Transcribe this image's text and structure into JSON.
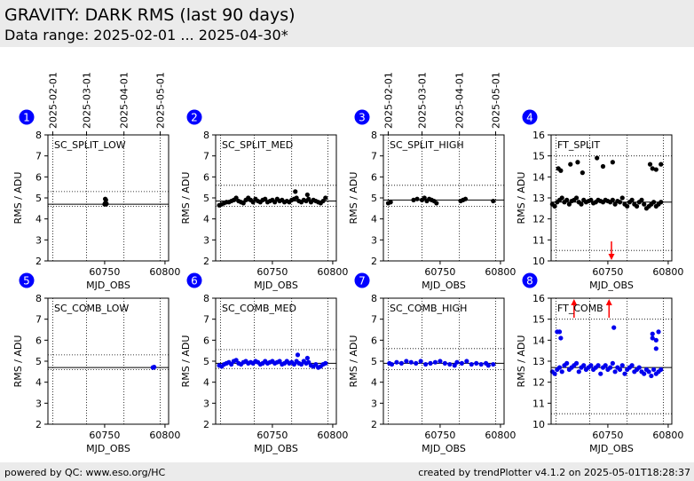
{
  "header": {
    "title": "GRAVITY: DARK RMS (last 90 days)",
    "subtitle": "Data range: 2025-02-01 ... 2025-04-30*"
  },
  "footer": {
    "left": "powered by QC: www.eso.org/HC",
    "right": "created by trendPlotter v4.1.2 on 2025-05-01T18:28:37"
  },
  "date_ticks": [
    "2025-02-01",
    "2025-03-01",
    "2025-04-01",
    "2025-05-01"
  ],
  "colors": {
    "sc_points": "#000000",
    "comb_points": "#0000ee",
    "badge": "#0000ff",
    "outlier_arrow": "#ff0000"
  },
  "chart_data": [
    {
      "type": "scatter",
      "badge": "1",
      "label": "SC_SPLIT_LOW",
      "xlabel": "MJD_OBS",
      "ylabel": "RMS / ADU",
      "xlim": [
        60703,
        60803
      ],
      "ylim": [
        2,
        8
      ],
      "xticks": [
        60750,
        60800
      ],
      "yticks": [
        2,
        3,
        4,
        5,
        6,
        7,
        8
      ],
      "median": 4.7,
      "limits": [
        4.6,
        5.3
      ],
      "x": [
        60750,
        60750.5,
        60751,
        60751.5,
        60750.5,
        60751
      ],
      "y": [
        4.7,
        4.75,
        4.7,
        4.72,
        4.95,
        4.9
      ],
      "outliers_low": [],
      "outliers_high": []
    },
    {
      "type": "scatter",
      "badge": "2",
      "label": "SC_SPLIT_MED",
      "xlabel": "MJD_OBS",
      "ylabel": "RMS / ADU",
      "xlim": [
        60703,
        60803
      ],
      "ylim": [
        2,
        8
      ],
      "xticks": [
        60750,
        60800
      ],
      "yticks": [
        2,
        3,
        4,
        5,
        6,
        7,
        8
      ],
      "median": 4.85,
      "limits": [
        4.6,
        5.6
      ],
      "x": [
        60706,
        60708,
        60710,
        60712,
        60714,
        60716,
        60718,
        60720,
        60722,
        60724,
        60726,
        60728,
        60730,
        60732,
        60734,
        60736,
        60738,
        60740,
        60742,
        60744,
        60746,
        60748,
        60750,
        60752,
        60754,
        60756,
        60758,
        60760,
        60762,
        60764,
        60766,
        60768,
        60770,
        60772,
        60774,
        60776,
        60778,
        60780,
        60782,
        60784,
        60786,
        60788,
        60790,
        60792,
        60794,
        60769,
        60779
      ],
      "y": [
        4.65,
        4.7,
        4.75,
        4.8,
        4.8,
        4.85,
        4.9,
        5.0,
        4.85,
        4.8,
        4.75,
        4.9,
        5.0,
        4.9,
        4.8,
        4.95,
        4.85,
        4.8,
        4.9,
        4.95,
        4.8,
        4.85,
        4.9,
        4.8,
        4.95,
        4.85,
        4.9,
        4.8,
        4.85,
        4.8,
        4.9,
        4.95,
        5.0,
        4.85,
        4.8,
        4.9,
        4.85,
        4.95,
        4.8,
        4.9,
        4.85,
        4.8,
        4.75,
        4.85,
        5.0,
        5.3,
        5.15
      ],
      "outliers_low": [],
      "outliers_high": []
    },
    {
      "type": "scatter",
      "badge": "3",
      "label": "SC_SPLIT_HIGH",
      "xlabel": "MJD_OBS",
      "ylabel": "RMS / ADU",
      "xlim": [
        60703,
        60803
      ],
      "ylim": [
        2,
        8
      ],
      "xticks": [
        60750,
        60800
      ],
      "yticks": [
        2,
        3,
        4,
        5,
        6,
        7,
        8
      ],
      "median": 4.9,
      "limits": [
        4.6,
        5.6
      ],
      "x": [
        60707,
        60709,
        60728,
        60731,
        60735,
        60737,
        60739,
        60741,
        60743,
        60745,
        60747,
        60767,
        60769,
        60771,
        60794
      ],
      "y": [
        4.75,
        4.8,
        4.9,
        4.95,
        4.9,
        5.0,
        4.85,
        4.95,
        4.9,
        4.85,
        4.75,
        4.85,
        4.9,
        4.95,
        4.85
      ],
      "outliers_low": [],
      "outliers_high": []
    },
    {
      "type": "scatter",
      "badge": "4",
      "label": "FT_SPLIT",
      "xlabel": "MJD_OBS",
      "ylabel": "RMS / ADU",
      "xlim": [
        60703,
        60803
      ],
      "ylim": [
        10,
        16
      ],
      "xticks": [
        60750,
        60800
      ],
      "yticks": [
        10,
        11,
        12,
        13,
        14,
        15,
        16
      ],
      "median": 12.8,
      "limits": [
        10.5,
        15.0
      ],
      "x": [
        60704,
        60706,
        60708,
        60710,
        60712,
        60714,
        60716,
        60718,
        60720,
        60722,
        60724,
        60726,
        60728,
        60730,
        60732,
        60734,
        60736,
        60738,
        60740,
        60742,
        60744,
        60746,
        60748,
        60750,
        60752,
        60754,
        60756,
        60758,
        60760,
        60762,
        60764,
        60766,
        60768,
        60770,
        60772,
        60774,
        60776,
        60778,
        60780,
        60782,
        60784,
        60786,
        60788,
        60790,
        60792,
        60794,
        60709,
        60711,
        60719,
        60725,
        60729,
        60741,
        60746,
        60754,
        60785,
        60787,
        60790,
        60794
      ],
      "y": [
        12.7,
        12.6,
        12.8,
        12.9,
        13.0,
        12.8,
        12.9,
        12.7,
        12.85,
        12.9,
        13.0,
        12.8,
        12.7,
        12.9,
        12.8,
        12.85,
        12.9,
        12.75,
        12.8,
        12.9,
        12.85,
        12.8,
        12.9,
        12.85,
        12.8,
        12.9,
        12.7,
        12.85,
        12.8,
        13.0,
        12.7,
        12.6,
        12.8,
        12.9,
        12.7,
        12.6,
        12.8,
        12.9,
        12.7,
        12.5,
        12.6,
        12.7,
        12.8,
        12.6,
        12.7,
        12.8,
        14.4,
        14.3,
        14.6,
        14.7,
        14.2,
        14.9,
        14.5,
        14.7,
        14.6,
        14.4,
        14.35,
        14.6
      ],
      "outliers_low": [
        60753
      ],
      "outliers_high": []
    },
    {
      "type": "scatter",
      "badge": "5",
      "label": "SC_COMB_LOW",
      "xlabel": "MJD_OBS",
      "ylabel": "RMS / ADU",
      "xlim": [
        60703,
        60803
      ],
      "ylim": [
        2,
        8
      ],
      "xticks": [
        60750,
        60800
      ],
      "yticks": [
        2,
        3,
        4,
        5,
        6,
        7,
        8
      ],
      "median": 4.7,
      "limits": [
        4.6,
        5.3
      ],
      "x": [
        60790,
        60791
      ],
      "y": [
        4.7,
        4.72
      ],
      "outliers_low": [],
      "outliers_high": []
    },
    {
      "type": "scatter",
      "badge": "6",
      "label": "SC_COMB_MED",
      "xlabel": "MJD_OBS",
      "ylabel": "RMS / ADU",
      "xlim": [
        60703,
        60803
      ],
      "ylim": [
        2,
        8
      ],
      "xticks": [
        60750,
        60800
      ],
      "yticks": [
        2,
        3,
        4,
        5,
        6,
        7,
        8
      ],
      "median": 4.9,
      "limits": [
        4.65,
        5.55
      ],
      "x": [
        60706,
        60708,
        60710,
        60712,
        60714,
        60716,
        60718,
        60720,
        60722,
        60724,
        60726,
        60728,
        60730,
        60732,
        60734,
        60736,
        60738,
        60740,
        60742,
        60744,
        60746,
        60748,
        60750,
        60752,
        60754,
        60756,
        60758,
        60760,
        60762,
        60764,
        60766,
        60768,
        60770,
        60772,
        60774,
        60776,
        60778,
        60780,
        60782,
        60784,
        60786,
        60788,
        60790,
        60792,
        60794,
        60771,
        60779
      ],
      "y": [
        4.8,
        4.75,
        4.85,
        4.9,
        4.95,
        4.85,
        5.0,
        5.05,
        4.9,
        4.85,
        4.95,
        5.0,
        4.9,
        4.95,
        4.9,
        5.0,
        4.95,
        4.85,
        4.9,
        5.0,
        4.9,
        4.95,
        5.0,
        4.9,
        4.95,
        5.0,
        4.85,
        4.9,
        5.0,
        4.9,
        4.95,
        4.85,
        5.0,
        4.9,
        4.85,
        5.0,
        4.9,
        4.95,
        4.8,
        4.75,
        4.85,
        4.7,
        4.75,
        4.85,
        4.9,
        5.3,
        5.15
      ],
      "outliers_low": [],
      "outliers_high": []
    },
    {
      "type": "scatter",
      "badge": "7",
      "label": "SC_COMB_HIGH",
      "xlabel": "MJD_OBS",
      "ylabel": "RMS / ADU",
      "xlim": [
        60703,
        60803
      ],
      "ylim": [
        2,
        8
      ],
      "xticks": [
        60750,
        60800
      ],
      "yticks": [
        2,
        3,
        4,
        5,
        6,
        7,
        8
      ],
      "median": 4.9,
      "limits": [
        4.6,
        5.6
      ],
      "x": [
        60708,
        60710,
        60714,
        60718,
        60722,
        60726,
        60730,
        60734,
        60738,
        60742,
        60746,
        60750,
        60754,
        60758,
        60762,
        60764,
        60768,
        60772,
        60776,
        60780,
        60784,
        60788,
        60790,
        60794
      ],
      "y": [
        4.9,
        4.85,
        4.95,
        4.9,
        5.0,
        4.95,
        4.9,
        5.0,
        4.85,
        4.9,
        4.95,
        5.0,
        4.9,
        4.85,
        4.8,
        4.95,
        4.9,
        5.0,
        4.85,
        4.9,
        4.85,
        4.9,
        4.8,
        4.85
      ],
      "outliers_low": [],
      "outliers_high": []
    },
    {
      "type": "scatter",
      "badge": "8",
      "label": "FT_COMB",
      "xlabel": "MJD_OBS",
      "ylabel": "RMS / ADU",
      "xlim": [
        60703,
        60803
      ],
      "ylim": [
        10,
        16
      ],
      "xticks": [
        60750,
        60800
      ],
      "yticks": [
        10,
        11,
        12,
        13,
        14,
        15,
        16
      ],
      "median": 12.7,
      "limits": [
        10.5,
        15.0
      ],
      "x": [
        60704,
        60706,
        60708,
        60710,
        60712,
        60714,
        60716,
        60718,
        60720,
        60722,
        60724,
        60726,
        60728,
        60730,
        60732,
        60734,
        60736,
        60738,
        60740,
        60742,
        60744,
        60746,
        60748,
        60750,
        60752,
        60754,
        60756,
        60758,
        60760,
        60762,
        60764,
        60766,
        60768,
        60770,
        60772,
        60774,
        60776,
        60778,
        60780,
        60782,
        60784,
        60786,
        60788,
        60790,
        60792,
        60794,
        60708,
        60710,
        60711,
        60755,
        60787,
        60787,
        60790,
        60790,
        60792
      ],
      "y": [
        12.5,
        12.4,
        12.6,
        12.7,
        12.5,
        12.8,
        12.9,
        12.6,
        12.7,
        12.8,
        12.9,
        12.5,
        12.7,
        12.8,
        12.6,
        12.7,
        12.8,
        12.6,
        12.7,
        12.8,
        12.4,
        12.7,
        12.8,
        12.6,
        12.7,
        12.9,
        12.5,
        12.7,
        12.6,
        12.8,
        12.4,
        12.6,
        12.7,
        12.8,
        12.5,
        12.6,
        12.7,
        12.5,
        12.4,
        12.6,
        12.5,
        12.3,
        12.6,
        12.4,
        12.5,
        12.6,
        14.4,
        14.4,
        14.1,
        14.6,
        14.3,
        14.1,
        14.0,
        13.6,
        14.4
      ],
      "outliers_low": [],
      "outliers_high": [
        60722,
        60751
      ]
    }
  ]
}
